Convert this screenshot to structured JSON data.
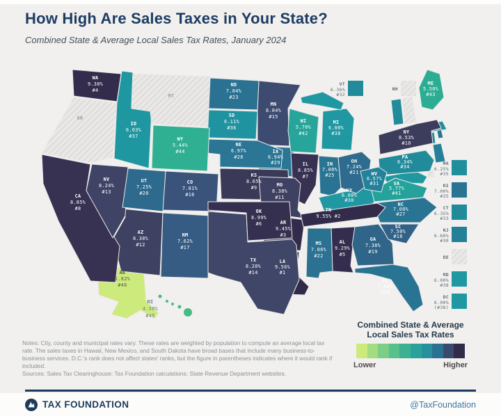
{
  "header": {
    "title": "How High Are Sales Taxes in Your State?",
    "subtitle": "Combined State & Average Local Sales Tax Rates, January 2024"
  },
  "legend": {
    "title_line1": "Combined State & Average",
    "title_line2": "Local Sales Tax Rates",
    "lower": "Lower",
    "higher": "Higher",
    "swatches": [
      "#cdea7d",
      "#a4dc82",
      "#7bce87",
      "#57c08b",
      "#3cb090",
      "#2aa29a",
      "#27909e",
      "#2b7292",
      "#3a4a6e",
      "#322a49"
    ]
  },
  "notes": {
    "text": "Notes: City, county and municipal rates vary. These rates are weighted by population to compute an average local tax rate. The sales taxes in Hawaii, New Mexico, and South Dakota have broad bases that include many business-to-business services. D.C.'s rank does not affect states' ranks, but the figure in parentheses indicates where it would rank if included.",
    "sources": "Sources: Sales Tax Clearinghouse; Tax Foundation calculations; State Revenue Department websites."
  },
  "footer": {
    "brand": "TAX FOUNDATION",
    "handle": "@TaxFoundation"
  },
  "chart_data": {
    "type": "choropleth",
    "title": "Combined State & Average Local Sales Tax Rates, January 2024",
    "unit": "%",
    "states": [
      {
        "abbr": "AK",
        "rate": 1.82,
        "rate_label": "1.82%",
        "rank_label": "#46",
        "color": "#cdea7d"
      },
      {
        "abbr": "AL",
        "rate": 9.29,
        "rate_label": "9.29%",
        "rank_label": "#5",
        "color": "#342d4d"
      },
      {
        "abbr": "AR",
        "rate": 9.45,
        "rate_label": "9.45%",
        "rank_label": "#3",
        "color": "#332b4b"
      },
      {
        "abbr": "AZ",
        "rate": 8.38,
        "rate_label": "8.38%",
        "rank_label": "#12",
        "color": "#3e4161"
      },
      {
        "abbr": "CA",
        "rate": 8.85,
        "rate_label": "8.85%",
        "rank_label": "#8",
        "color": "#373152"
      },
      {
        "abbr": "CO",
        "rate": 7.81,
        "rate_label": "7.81%",
        "rank_label": "#16",
        "color": "#3a537b"
      },
      {
        "abbr": "CT",
        "rate": 6.35,
        "rate_label": "6.35%",
        "rank_label": "#33",
        "color": "#218b9b"
      },
      {
        "abbr": "DC",
        "rate": 6.0,
        "rate_label": "6.00%",
        "rank_label": "(#38)",
        "color": "#1f98a1"
      },
      {
        "abbr": "DE",
        "no_tax": true
      },
      {
        "abbr": "FL",
        "rate": 7.0,
        "rate_label": "7.00%",
        "rank_label": "#24",
        "color": "#2a7493"
      },
      {
        "abbr": "GA",
        "rate": 7.38,
        "rate_label": "7.38%",
        "rank_label": "#19",
        "color": "#30658a"
      },
      {
        "abbr": "HI",
        "rate": 4.5,
        "rate_label": "4.50%",
        "rank_label": "#45",
        "color": "#45bb85"
      },
      {
        "abbr": "IA",
        "rate": 6.94,
        "rate_label": "6.94%",
        "rank_label": "#29",
        "color": "#297795"
      },
      {
        "abbr": "ID",
        "rate": 6.03,
        "rate_label": "6.03%",
        "rank_label": "#37",
        "color": "#1f97a0"
      },
      {
        "abbr": "IL",
        "rate": 8.85,
        "rate_label": "8.85%",
        "rank_label": "#7",
        "color": "#373152"
      },
      {
        "abbr": "IN",
        "rate": 7.0,
        "rate_label": "7.00%",
        "rank_label": "#25",
        "color": "#2a7493"
      },
      {
        "abbr": "KS",
        "rate": 8.65,
        "rate_label": "8.65%",
        "rank_label": "#9",
        "color": "#3a3957"
      },
      {
        "abbr": "KY",
        "rate": 6.0,
        "rate_label": "6.00%",
        "rank_label": "#38",
        "color": "#1f98a1"
      },
      {
        "abbr": "LA",
        "rate": 9.56,
        "rate_label": "9.56%",
        "rank_label": "#1",
        "color": "#322a49"
      },
      {
        "abbr": "MA",
        "rate": 6.25,
        "rate_label": "6.25%",
        "rank_label": "#35",
        "color": "#208f9d"
      },
      {
        "abbr": "MD",
        "rate": 6.0,
        "rate_label": "6.00%",
        "rank_label": "#38",
        "color": "#1f98a1"
      },
      {
        "abbr": "ME",
        "rate": 5.5,
        "rate_label": "5.50%",
        "rank_label": "#43",
        "color": "#2cad93"
      },
      {
        "abbr": "MI",
        "rate": 6.0,
        "rate_label": "6.00%",
        "rank_label": "#38",
        "color": "#1f98a1"
      },
      {
        "abbr": "MN",
        "rate": 8.04,
        "rate_label": "8.04%",
        "rank_label": "#15",
        "color": "#3d4b70"
      },
      {
        "abbr": "MO",
        "rate": 8.38,
        "rate_label": "8.38%",
        "rank_label": "#11",
        "color": "#3e4161"
      },
      {
        "abbr": "MS",
        "rate": 7.06,
        "rate_label": "7.06%",
        "rank_label": "#22",
        "color": "#2b7191"
      },
      {
        "abbr": "MT",
        "no_tax": true
      },
      {
        "abbr": "NC",
        "rate": 7.0,
        "rate_label": "7.00%",
        "rank_label": "#27",
        "color": "#2a7493"
      },
      {
        "abbr": "ND",
        "rate": 7.04,
        "rate_label": "7.04%",
        "rank_label": "#23",
        "color": "#2b7292"
      },
      {
        "abbr": "NE",
        "rate": 6.97,
        "rate_label": "6.97%",
        "rank_label": "#28",
        "color": "#2a7694"
      },
      {
        "abbr": "NH",
        "no_tax": true
      },
      {
        "abbr": "NJ",
        "rate": 6.6,
        "rate_label": "6.60%",
        "rank_label": "#30",
        "color": "#248099"
      },
      {
        "abbr": "NM",
        "rate": 7.62,
        "rate_label": "7.62%",
        "rank_label": "#17",
        "color": "#365c83"
      },
      {
        "abbr": "NV",
        "rate": 8.24,
        "rate_label": "8.24%",
        "rank_label": "#13",
        "color": "#3f4466"
      },
      {
        "abbr": "NY",
        "rate": 8.53,
        "rate_label": "8.53%",
        "rank_label": "#10",
        "color": "#3c3c5c"
      },
      {
        "abbr": "OH",
        "rate": 7.24,
        "rate_label": "7.24%",
        "rank_label": "#21",
        "color": "#2e6b8e"
      },
      {
        "abbr": "OK",
        "rate": 8.99,
        "rate_label": "8.99%",
        "rank_label": "#6",
        "color": "#363050"
      },
      {
        "abbr": "OR",
        "no_tax": true
      },
      {
        "abbr": "PA",
        "rate": 6.34,
        "rate_label": "6.34%",
        "rank_label": "#34",
        "color": "#218b9b"
      },
      {
        "abbr": "RI",
        "rate": 7.0,
        "rate_label": "7.00%",
        "rank_label": "#25",
        "color": "#2a7493"
      },
      {
        "abbr": "SC",
        "rate": 7.5,
        "rate_label": "7.50%",
        "rank_label": "#18",
        "color": "#326188"
      },
      {
        "abbr": "SD",
        "rate": 6.11,
        "rate_label": "6.11%",
        "rank_label": "#36",
        "color": "#1f94a0"
      },
      {
        "abbr": "TN",
        "rate": 9.55,
        "rate_label": "9.55%",
        "rank_label": "#2",
        "color": "#322b4a"
      },
      {
        "abbr": "TX",
        "rate": 8.2,
        "rate_label": "8.20%",
        "rank_label": "#14",
        "color": "#3f4668"
      },
      {
        "abbr": "UT",
        "rate": 7.25,
        "rate_label": "7.25%",
        "rank_label": "#20",
        "color": "#2e6a8d"
      },
      {
        "abbr": "VA",
        "rate": 5.77,
        "rate_label": "5.77%",
        "rank_label": "#41",
        "color": "#25a29b"
      },
      {
        "abbr": "VT",
        "rate": 6.36,
        "rate_label": "6.36%",
        "rank_label": "#32",
        "color": "#218a9b"
      },
      {
        "abbr": "WA",
        "rate": 9.38,
        "rate_label": "9.38%",
        "rank_label": "#4",
        "color": "#332c4c"
      },
      {
        "abbr": "WI",
        "rate": 5.7,
        "rate_label": "5.70%",
        "rank_label": "#42",
        "color": "#27a59a"
      },
      {
        "abbr": "WV",
        "rate": 6.57,
        "rate_label": "6.57%",
        "rank_label": "#31",
        "color": "#238199"
      },
      {
        "abbr": "WY",
        "rate": 5.44,
        "rate_label": "5.44%",
        "rank_label": "#44",
        "color": "#2fb092"
      }
    ]
  }
}
